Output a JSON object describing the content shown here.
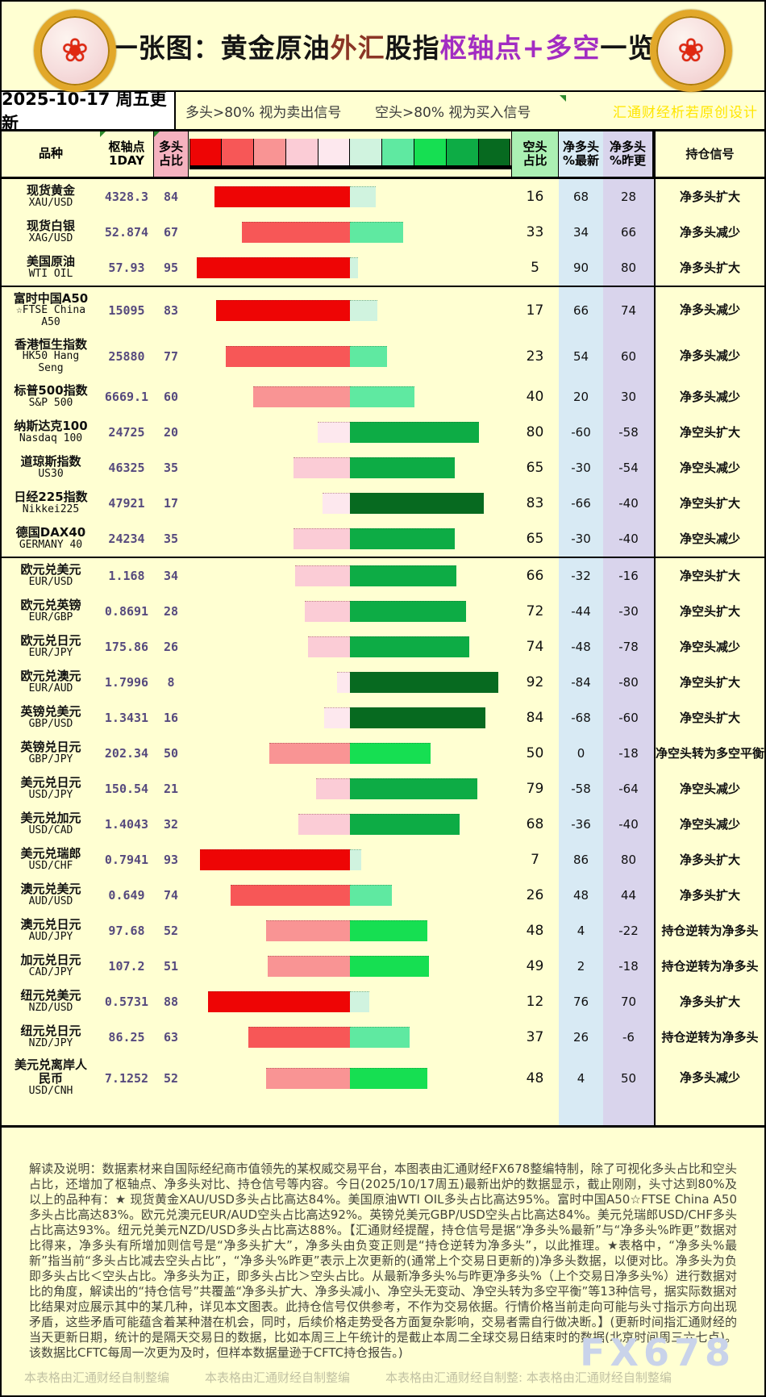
{
  "header": {
    "title_segments": [
      {
        "text": "一张图：黄金原油",
        "color": "#141414"
      },
      {
        "text": "外汇",
        "color": "#8b3626"
      },
      {
        "text": "股指",
        "color": "#141414"
      },
      {
        "text": "枢轴点+多空",
        "color": "#a22cc2"
      },
      {
        "text": "一览",
        "color": "#141414"
      }
    ],
    "logo_icon": "gold-coin-flower-logo",
    "date_label": "2025-10-17 周五更新",
    "long_signal_note": "多头>80% 视为卖出信号",
    "short_signal_note": "空头>80% 视为买入信号",
    "top_watermark": "汇通财经析若原创设计"
  },
  "table": {
    "columns": {
      "instrument": "品种",
      "pivot": "枢轴点\n1DAY",
      "long_pct": "多头\n占比",
      "short_pct": "空头\n占比",
      "net_latest": "净多头\n%最新",
      "net_prev": "净多头\n%昨更",
      "signal": "持仓信号"
    },
    "legend": {
      "red_shades": [
        "#fde8ee",
        "#fbccd6",
        "#f99494",
        "#f75757",
        "#ee0505"
      ],
      "green_shades": [
        "#d0f3df",
        "#5fe9a1",
        "#16df52",
        "#0dac45",
        "#076a20"
      ]
    },
    "column_colors": {
      "long_header_bg": "#f5b2bf",
      "short_header_bg": "#abf0b3",
      "net_latest_bg": "#d8eaf4",
      "net_prev_bg": "#d9d4ec",
      "pivot_text": "#564a7e",
      "page_bg": "#ffffd2"
    },
    "rows": [
      {
        "name_cn": "现货黄金",
        "name_en": "XAU/USD",
        "pivot": "4328.3",
        "long_pct": 84,
        "short_pct": 16,
        "net_latest": 68,
        "net_prev": 28,
        "signal": "净多头扩大"
      },
      {
        "name_cn": "现货白银",
        "name_en": "XAG/USD",
        "pivot": "52.874",
        "long_pct": 67,
        "short_pct": 33,
        "net_latest": 34,
        "net_prev": 66,
        "signal": "净多头减少"
      },
      {
        "name_cn": "美国原油",
        "name_en": "WTI OIL",
        "pivot": "57.93",
        "long_pct": 95,
        "short_pct": 5,
        "net_latest": 90,
        "net_prev": 80,
        "signal": "净多头扩大",
        "group_end": true
      },
      {
        "name_cn": "富时中国A50",
        "name_en": "☆FTSE China\nA50",
        "pivot": "15095",
        "long_pct": 83,
        "short_pct": 17,
        "net_latest": 66,
        "net_prev": 74,
        "signal": "净多头减少",
        "tall": true
      },
      {
        "name_cn": "香港恒生指数",
        "name_en": "HK50 Hang\nSeng",
        "pivot": "25880",
        "long_pct": 77,
        "short_pct": 23,
        "net_latest": 54,
        "net_prev": 60,
        "signal": "净多头减少",
        "tall": true
      },
      {
        "name_cn": "标普500指数",
        "name_en": "S&P 500",
        "pivot": "6669.1",
        "long_pct": 60,
        "short_pct": 40,
        "net_latest": 20,
        "net_prev": 30,
        "signal": "净多头减少"
      },
      {
        "name_cn": "纳斯达克100",
        "name_en": "Nasdaq 100",
        "pivot": "24725",
        "long_pct": 20,
        "short_pct": 80,
        "net_latest": -60,
        "net_prev": -58,
        "signal": "净空头扩大"
      },
      {
        "name_cn": "道琼斯指数",
        "name_en": "US30",
        "pivot": "46325",
        "long_pct": 35,
        "short_pct": 65,
        "net_latest": -30,
        "net_prev": -54,
        "signal": "净空头减少"
      },
      {
        "name_cn": "日经225指数",
        "name_en": "Nikkei225",
        "pivot": "47921",
        "long_pct": 17,
        "short_pct": 83,
        "net_latest": -66,
        "net_prev": -40,
        "signal": "净空头扩大"
      },
      {
        "name_cn": "德国DAX40",
        "name_en": "GERMANY 40",
        "pivot": "24234",
        "long_pct": 35,
        "short_pct": 65,
        "net_latest": -30,
        "net_prev": -40,
        "signal": "净空头减少",
        "group_end": true
      },
      {
        "name_cn": "欧元兑美元",
        "name_en": "EUR/USD",
        "pivot": "1.168",
        "long_pct": 34,
        "short_pct": 66,
        "net_latest": -32,
        "net_prev": -16,
        "signal": "净空头扩大"
      },
      {
        "name_cn": "欧元兑英镑",
        "name_en": "EUR/GBP",
        "pivot": "0.8691",
        "long_pct": 28,
        "short_pct": 72,
        "net_latest": -44,
        "net_prev": -30,
        "signal": "净空头扩大"
      },
      {
        "name_cn": "欧元兑日元",
        "name_en": "EUR/JPY",
        "pivot": "175.86",
        "long_pct": 26,
        "short_pct": 74,
        "net_latest": -48,
        "net_prev": -78,
        "signal": "净空头减少"
      },
      {
        "name_cn": "欧元兑澳元",
        "name_en": "EUR/AUD",
        "pivot": "1.7996",
        "long_pct": 8,
        "short_pct": 92,
        "net_latest": -84,
        "net_prev": -80,
        "signal": "净空头扩大"
      },
      {
        "name_cn": "英镑兑美元",
        "name_en": "GBP/USD",
        "pivot": "1.3431",
        "long_pct": 16,
        "short_pct": 84,
        "net_latest": -68,
        "net_prev": -60,
        "signal": "净空头扩大"
      },
      {
        "name_cn": "英镑兑日元",
        "name_en": "GBP/JPY",
        "pivot": "202.34",
        "long_pct": 50,
        "short_pct": 50,
        "net_latest": 0,
        "net_prev": -18,
        "signal": "净空头转为多空平衡"
      },
      {
        "name_cn": "美元兑日元",
        "name_en": "USD/JPY",
        "pivot": "150.54",
        "long_pct": 21,
        "short_pct": 79,
        "net_latest": -58,
        "net_prev": -64,
        "signal": "净空头减少"
      },
      {
        "name_cn": "美元兑加元",
        "name_en": "USD/CAD",
        "pivot": "1.4043",
        "long_pct": 32,
        "short_pct": 68,
        "net_latest": -36,
        "net_prev": -40,
        "signal": "净空头减少"
      },
      {
        "name_cn": "美元兑瑞郎",
        "name_en": "USD/CHF",
        "pivot": "0.7941",
        "long_pct": 93,
        "short_pct": 7,
        "net_latest": 86,
        "net_prev": 80,
        "signal": "净多头扩大"
      },
      {
        "name_cn": "澳元兑美元",
        "name_en": "AUD/USD",
        "pivot": "0.649",
        "long_pct": 74,
        "short_pct": 26,
        "net_latest": 48,
        "net_prev": 44,
        "signal": "净多头扩大"
      },
      {
        "name_cn": "澳元兑日元",
        "name_en": "AUD/JPY",
        "pivot": "97.68",
        "long_pct": 52,
        "short_pct": 48,
        "net_latest": 4,
        "net_prev": -22,
        "signal": "持仓逆转为净多头"
      },
      {
        "name_cn": "加元兑日元",
        "name_en": "CAD/JPY",
        "pivot": "107.2",
        "long_pct": 51,
        "short_pct": 49,
        "net_latest": 2,
        "net_prev": -18,
        "signal": "持仓逆转为净多头"
      },
      {
        "name_cn": "纽元兑美元",
        "name_en": "NZD/USD",
        "pivot": "0.5731",
        "long_pct": 88,
        "short_pct": 12,
        "net_latest": 76,
        "net_prev": 70,
        "signal": "净多头扩大"
      },
      {
        "name_cn": "纽元兑日元",
        "name_en": "NZD/JPY",
        "pivot": "86.25",
        "long_pct": 63,
        "short_pct": 37,
        "net_latest": 26,
        "net_prev": -6,
        "signal": "持仓逆转为净多头"
      },
      {
        "name_cn": "美元兑离岸人\n民币",
        "name_en": "USD/CNH",
        "pivot": "7.1252",
        "long_pct": 52,
        "short_pct": 48,
        "net_latest": 4,
        "net_prev": 50,
        "signal": "净多头减少",
        "tall": true
      }
    ]
  },
  "footer": {
    "disclaimer": "解读及说明：数据素材来自国际经纪商市值领先的某权威交易平台，本图表由汇通财经FX678整编特制，除了可视化多头占比和空头占比，还增加了枢轴点、净多头对比、持仓信号等内容。今日(2025/10/17周五)最新出炉的数据显示，截止刚刚，头寸达到80%及以上的品种有：★ 现货黄金XAU/USD多头占比高达84%。美国原油WTI OIL多头占比高达95%。富时中国A50☆FTSE China A50多头占比高达83%。欧元兑澳元EUR/AUD空头占比高达92%。英镑兑美元GBP/USD空头占比高达84%。美元兑瑞郎USD/CHF多头占比高达93%。纽元兑美元NZD/USD多头占比高达88%。【汇通财经提醒，持仓信号是据“净多头%最新”与“净多头%昨更”数据对比得来，净多头有所增加则信号是“净多头扩大”，净多头由负变正则是“持仓逆转为净多头”，以此推理。★表格中，“净多头%最新”指当前“多头占比减去空头占比”，“净多头%昨更”表示上次更新的(通常上个交易日更新的)净多头数据，以便对比。净多头为负 即多头占比＜空头占比。净多头为正，即多头占比＞空头占比。从最新净多头%与昨更净多头%（上个交易日净多头%）进行数据对比的角度，解读出的“持仓信号”共覆盖“净多头扩大、净多头减小、净空头无变动、净空头转为多空平衡”等13种信号，据实际数据对比结果对应展示其中的某几种，详见本文图表。此持仓信号仅供参考，不作为交易依据。行情价格当前走向可能与头寸指示方向出现矛盾，这些矛盾可能蕴含着某种潜在机会，同时，后续价格走势受各方面复杂影响，交易者需自行做决断。】(更新时间指汇通财经的当天更新日期，统计的是隔天交易日的数据，比如本周三上午统计的是截止本周二全球交易日结束时的数据(北京时间周三六七点)。该数据比CFTC每周一次更为及时，但样本数据量逊于CFTC持仓报告。)",
    "credits": [
      "本表格由汇通财经自制整编",
      "本表格由汇通财经自制整编",
      "本表格由汇通财经自制整: 本表格由汇通财经自制整编"
    ],
    "brand_watermark": "FX678"
  },
  "chart_data": {
    "type": "bar",
    "title": "一张图：黄金原油外汇股指枢轴点+多空一览",
    "subtitle": "2025-10-17 周五更新",
    "orientation": "horizontal-diverging",
    "xlim": [
      -100,
      100
    ],
    "legend_position": "top",
    "categories": [
      "XAU/USD",
      "XAG/USD",
      "WTI OIL",
      "FTSE China A50",
      "HK50 Hang Seng",
      "S&P 500",
      "Nasdaq 100",
      "US30",
      "Nikkei225",
      "GERMANY 40",
      "EUR/USD",
      "EUR/GBP",
      "EUR/JPY",
      "EUR/AUD",
      "GBP/USD",
      "GBP/JPY",
      "USD/JPY",
      "USD/CAD",
      "USD/CHF",
      "AUD/USD",
      "AUD/JPY",
      "CAD/JPY",
      "NZD/USD",
      "NZD/JPY",
      "USD/CNH"
    ],
    "series": [
      {
        "name": "枢轴点1DAY",
        "values": [
          4328.3,
          52.874,
          57.93,
          15095,
          25880,
          6669.1,
          24725,
          46325,
          47921,
          24234,
          1.168,
          0.8691,
          175.86,
          1.7996,
          1.3431,
          202.34,
          150.54,
          1.4043,
          0.7941,
          0.649,
          97.68,
          107.2,
          0.5731,
          86.25,
          7.1252
        ]
      },
      {
        "name": "多头占比",
        "values": [
          84,
          67,
          95,
          83,
          77,
          60,
          20,
          35,
          17,
          35,
          34,
          28,
          26,
          8,
          16,
          50,
          21,
          32,
          93,
          74,
          52,
          51,
          88,
          63,
          52
        ]
      },
      {
        "name": "空头占比",
        "values": [
          16,
          33,
          5,
          17,
          23,
          40,
          80,
          65,
          83,
          65,
          66,
          72,
          74,
          92,
          84,
          50,
          79,
          68,
          7,
          26,
          48,
          49,
          12,
          37,
          48
        ]
      },
      {
        "name": "净多头%最新",
        "values": [
          68,
          34,
          90,
          66,
          54,
          20,
          -60,
          -30,
          -66,
          -30,
          -32,
          -44,
          -48,
          -84,
          -68,
          0,
          -58,
          -36,
          86,
          48,
          4,
          2,
          76,
          26,
          4
        ]
      },
      {
        "name": "净多头%昨更",
        "values": [
          28,
          66,
          80,
          74,
          60,
          30,
          -58,
          -54,
          -40,
          -40,
          -16,
          -30,
          -78,
          -80,
          -60,
          -18,
          -64,
          -40,
          80,
          44,
          -22,
          -18,
          70,
          -6,
          50
        ]
      }
    ],
    "annotations": [
      "多头>80% 视为卖出信号",
      "空头>80% 视为买入信号"
    ]
  }
}
